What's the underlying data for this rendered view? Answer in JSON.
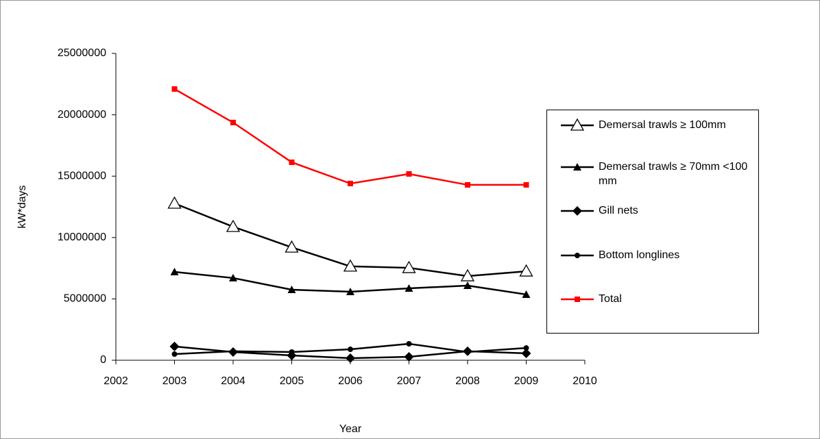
{
  "chart_data": {
    "type": "line",
    "x_label": "Year",
    "y_label": "kW*days",
    "x": [
      2003,
      2004,
      2005,
      2006,
      2007,
      2008,
      2009
    ],
    "xlim": [
      2002,
      2010
    ],
    "xticks": [
      2002,
      2003,
      2004,
      2005,
      2006,
      2007,
      2008,
      2009,
      2010
    ],
    "ylim": [
      0,
      25000000
    ],
    "yticks": [
      0,
      5000000,
      10000000,
      15000000,
      20000000,
      25000000
    ],
    "grid": false,
    "legend_position": "right",
    "series": [
      {
        "name": "Demersal trawls ≥ 100mm",
        "color": "#000000",
        "marker": "triangle-open",
        "values": [
          12780000,
          10880000,
          9200000,
          7650000,
          7530000,
          6860000,
          7250000
        ]
      },
      {
        "name": "Demersal trawls ≥ 70mm <100 mm",
        "color": "#000000",
        "marker": "triangle",
        "values": [
          7200000,
          6700000,
          5750000,
          5580000,
          5860000,
          6080000,
          5360000
        ]
      },
      {
        "name": "Gill nets",
        "color": "#000000",
        "marker": "diamond",
        "values": [
          1120000,
          670000,
          390000,
          170000,
          280000,
          730000,
          560000
        ]
      },
      {
        "name": "Bottom longlines",
        "color": "#000000",
        "marker": "circle",
        "values": [
          500000,
          730000,
          670000,
          890000,
          1340000,
          670000,
          1000000
        ]
      },
      {
        "name": "Total",
        "color": "#ff0000",
        "marker": "square",
        "values": [
          22100000,
          19370000,
          16130000,
          14400000,
          15180000,
          14290000,
          14290000
        ]
      }
    ]
  }
}
